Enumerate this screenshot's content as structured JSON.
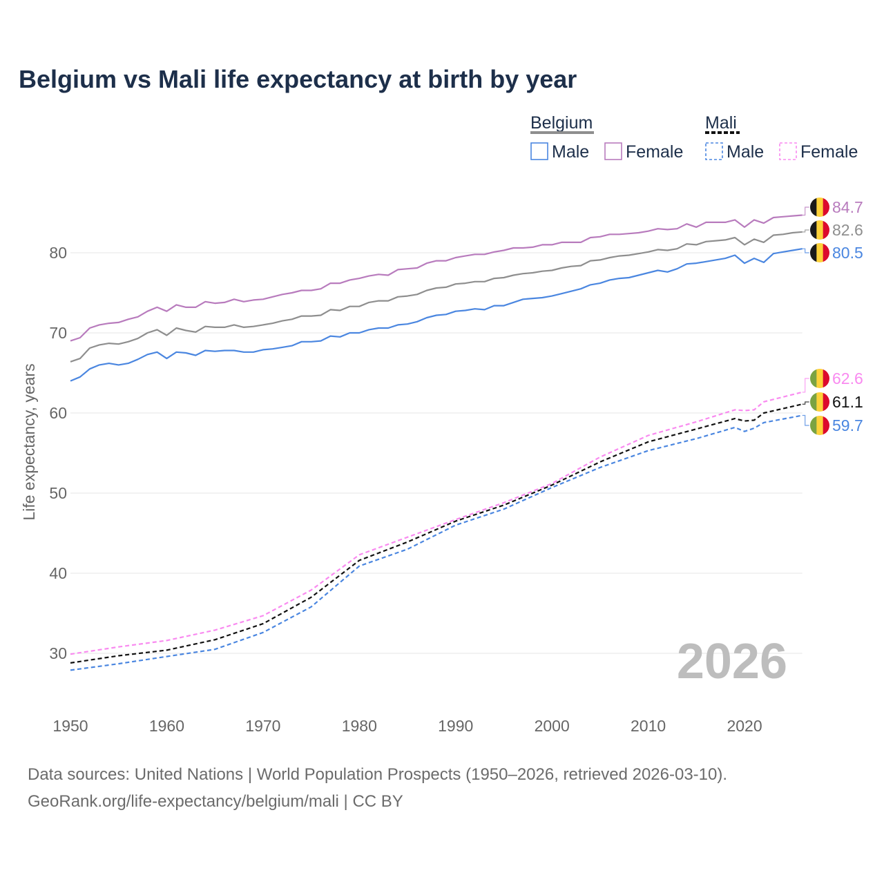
{
  "chart_data": {
    "type": "line",
    "title": "Belgium vs Mali life expectancy at birth by year",
    "ylabel": "Life expectancy, years",
    "xlabel": "",
    "xlim": [
      1950,
      2026
    ],
    "ylim": [
      24,
      88
    ],
    "x_ticks": [
      1950,
      1960,
      1970,
      1980,
      1990,
      2000,
      2010,
      2020
    ],
    "y_ticks": [
      30,
      40,
      50,
      60,
      70,
      80
    ],
    "grid": "horizontal",
    "year_watermark": "2026",
    "legend": {
      "placement": "top-right",
      "groups": [
        {
          "name": "Belgium",
          "items": [
            "Male",
            "Female"
          ],
          "style": "solid"
        },
        {
          "name": "Mali",
          "items": [
            "Male",
            "Female"
          ],
          "style": "dashed"
        }
      ]
    },
    "colors": {
      "male": "#4a86e0",
      "female": "#b87bbd",
      "belgium_total": "#8e8e8e",
      "mali_female": "#f98af0",
      "mali_total": "#111111",
      "mali_male": "#4a86e0"
    },
    "series": [
      {
        "name": "Belgium Female",
        "country": "Belgium",
        "dash": false,
        "color": "#b87bbd",
        "end_label": "84.7",
        "x": [
          1950,
          1951,
          1952,
          1953,
          1954,
          1955,
          1956,
          1957,
          1958,
          1959,
          1960,
          1961,
          1962,
          1963,
          1964,
          1965,
          1966,
          1967,
          1968,
          1969,
          1970,
          1971,
          1972,
          1973,
          1974,
          1975,
          1976,
          1977,
          1978,
          1979,
          1980,
          1981,
          1982,
          1983,
          1984,
          1985,
          1986,
          1987,
          1988,
          1989,
          1990,
          1991,
          1992,
          1993,
          1994,
          1995,
          1996,
          1997,
          1998,
          1999,
          2000,
          2001,
          2002,
          2003,
          2004,
          2005,
          2006,
          2007,
          2008,
          2009,
          2010,
          2011,
          2012,
          2013,
          2014,
          2015,
          2016,
          2017,
          2018,
          2019,
          2020,
          2021,
          2022,
          2023,
          2024,
          2025,
          2026
        ],
        "values": [
          69.0,
          69.4,
          70.6,
          71.0,
          71.2,
          71.3,
          71.7,
          72.0,
          72.7,
          73.2,
          72.7,
          73.5,
          73.2,
          73.2,
          73.9,
          73.7,
          73.8,
          74.2,
          73.9,
          74.1,
          74.2,
          74.5,
          74.8,
          75.0,
          75.3,
          75.3,
          75.5,
          76.2,
          76.2,
          76.6,
          76.8,
          77.1,
          77.3,
          77.2,
          77.9,
          78.0,
          78.1,
          78.7,
          79.0,
          79.0,
          79.4,
          79.6,
          79.8,
          79.8,
          80.1,
          80.3,
          80.6,
          80.6,
          80.7,
          81.0,
          81.0,
          81.3,
          81.3,
          81.3,
          81.9,
          82.0,
          82.3,
          82.3,
          82.4,
          82.5,
          82.7,
          83.0,
          82.9,
          83.0,
          83.6,
          83.2,
          83.8,
          83.8,
          83.8,
          84.1,
          83.2,
          84.1,
          83.7,
          84.4,
          84.5,
          84.6,
          84.7
        ]
      },
      {
        "name": "Belgium Total",
        "country": "Belgium",
        "dash": false,
        "color": "#8e8e8e",
        "end_label": "82.6",
        "x": [
          1950,
          1951,
          1952,
          1953,
          1954,
          1955,
          1956,
          1957,
          1958,
          1959,
          1960,
          1961,
          1962,
          1963,
          1964,
          1965,
          1966,
          1967,
          1968,
          1969,
          1970,
          1971,
          1972,
          1973,
          1974,
          1975,
          1976,
          1977,
          1978,
          1979,
          1980,
          1981,
          1982,
          1983,
          1984,
          1985,
          1986,
          1987,
          1988,
          1989,
          1990,
          1991,
          1992,
          1993,
          1994,
          1995,
          1996,
          1997,
          1998,
          1999,
          2000,
          2001,
          2002,
          2003,
          2004,
          2005,
          2006,
          2007,
          2008,
          2009,
          2010,
          2011,
          2012,
          2013,
          2014,
          2015,
          2016,
          2017,
          2018,
          2019,
          2020,
          2021,
          2022,
          2023,
          2024,
          2025,
          2026
        ],
        "values": [
          66.4,
          66.8,
          68.1,
          68.5,
          68.7,
          68.6,
          68.9,
          69.3,
          70.0,
          70.4,
          69.7,
          70.6,
          70.3,
          70.1,
          70.8,
          70.7,
          70.7,
          71.0,
          70.7,
          70.8,
          71.0,
          71.2,
          71.5,
          71.7,
          72.1,
          72.1,
          72.2,
          72.9,
          72.8,
          73.3,
          73.3,
          73.8,
          74.0,
          74.0,
          74.5,
          74.6,
          74.8,
          75.3,
          75.6,
          75.7,
          76.1,
          76.2,
          76.4,
          76.4,
          76.8,
          76.9,
          77.2,
          77.4,
          77.5,
          77.7,
          77.8,
          78.1,
          78.3,
          78.4,
          79.0,
          79.1,
          79.4,
          79.6,
          79.7,
          79.9,
          80.1,
          80.4,
          80.3,
          80.5,
          81.1,
          81.0,
          81.4,
          81.5,
          81.6,
          81.9,
          81.0,
          81.7,
          81.3,
          82.2,
          82.3,
          82.5,
          82.6
        ]
      },
      {
        "name": "Belgium Male",
        "country": "Belgium",
        "dash": false,
        "color": "#4a86e0",
        "end_label": "80.5",
        "x": [
          1950,
          1951,
          1952,
          1953,
          1954,
          1955,
          1956,
          1957,
          1958,
          1959,
          1960,
          1961,
          1962,
          1963,
          1964,
          1965,
          1966,
          1967,
          1968,
          1969,
          1970,
          1971,
          1972,
          1973,
          1974,
          1975,
          1976,
          1977,
          1978,
          1979,
          1980,
          1981,
          1982,
          1983,
          1984,
          1985,
          1986,
          1987,
          1988,
          1989,
          1990,
          1991,
          1992,
          1993,
          1994,
          1995,
          1996,
          1997,
          1998,
          1999,
          2000,
          2001,
          2002,
          2003,
          2004,
          2005,
          2006,
          2007,
          2008,
          2009,
          2010,
          2011,
          2012,
          2013,
          2014,
          2015,
          2016,
          2017,
          2018,
          2019,
          2020,
          2021,
          2022,
          2023,
          2024,
          2025,
          2026
        ],
        "values": [
          64.0,
          64.5,
          65.5,
          66.0,
          66.2,
          66.0,
          66.2,
          66.7,
          67.3,
          67.6,
          66.8,
          67.6,
          67.5,
          67.2,
          67.8,
          67.7,
          67.8,
          67.8,
          67.6,
          67.6,
          67.9,
          68.0,
          68.2,
          68.4,
          68.9,
          68.9,
          69.0,
          69.6,
          69.5,
          70.0,
          70.0,
          70.4,
          70.6,
          70.6,
          71.0,
          71.1,
          71.4,
          71.9,
          72.2,
          72.3,
          72.7,
          72.8,
          73.0,
          72.9,
          73.4,
          73.4,
          73.8,
          74.2,
          74.3,
          74.4,
          74.6,
          74.9,
          75.2,
          75.5,
          76.0,
          76.2,
          76.6,
          76.8,
          76.9,
          77.2,
          77.5,
          77.8,
          77.6,
          78.0,
          78.6,
          78.7,
          78.9,
          79.1,
          79.3,
          79.7,
          78.7,
          79.3,
          78.8,
          79.9,
          80.1,
          80.3,
          80.5
        ]
      },
      {
        "name": "Mali Female",
        "country": "Mali",
        "dash": true,
        "color": "#f98af0",
        "end_label": "62.6",
        "x": [
          1950,
          1955,
          1960,
          1965,
          1970,
          1975,
          1980,
          1985,
          1990,
          1995,
          2000,
          2005,
          2010,
          2015,
          2019,
          2020,
          2021,
          2022,
          2026
        ],
        "values": [
          29.9,
          30.8,
          31.6,
          32.9,
          34.7,
          37.9,
          42.3,
          44.5,
          46.7,
          48.8,
          51.2,
          54.5,
          57.2,
          58.9,
          60.4,
          60.3,
          60.4,
          61.4,
          62.6
        ]
      },
      {
        "name": "Mali Total",
        "country": "Mali",
        "dash": true,
        "color": "#111111",
        "end_label": "61.1",
        "x": [
          1950,
          1955,
          1960,
          1965,
          1970,
          1975,
          1980,
          1985,
          1990,
          1995,
          2000,
          2005,
          2010,
          2015,
          2019,
          2020,
          2021,
          2022,
          2026
        ],
        "values": [
          28.8,
          29.7,
          30.4,
          31.7,
          33.7,
          37.0,
          41.6,
          43.9,
          46.5,
          48.5,
          51.0,
          53.9,
          56.4,
          58.0,
          59.3,
          59.0,
          59.1,
          60.0,
          61.1
        ]
      },
      {
        "name": "Mali Male",
        "country": "Mali",
        "dash": true,
        "color": "#4a86e0",
        "end_label": "59.7",
        "x": [
          1950,
          1955,
          1960,
          1965,
          1970,
          1975,
          1980,
          1985,
          1990,
          1995,
          2000,
          2005,
          2010,
          2015,
          2019,
          2020,
          2021,
          2022,
          2026
        ],
        "values": [
          27.9,
          28.7,
          29.6,
          30.5,
          32.6,
          35.8,
          40.9,
          43.0,
          46.0,
          48.0,
          50.7,
          53.2,
          55.3,
          56.8,
          58.2,
          57.7,
          58.1,
          58.8,
          59.7
        ]
      }
    ]
  },
  "footer": {
    "line1": "Data sources: United Nations | World Population Prospects (1950–2026, retrieved 2026-03-10).",
    "line2": "GeoRank.org/life-expectancy/belgium/mali | CC BY"
  },
  "flags": {
    "Belgium": [
      "#1a1a1a",
      "#fdd23a",
      "#dc0a2d"
    ],
    "Mali": [
      "#7aa342",
      "#fdd23a",
      "#dc0a2d"
    ]
  }
}
